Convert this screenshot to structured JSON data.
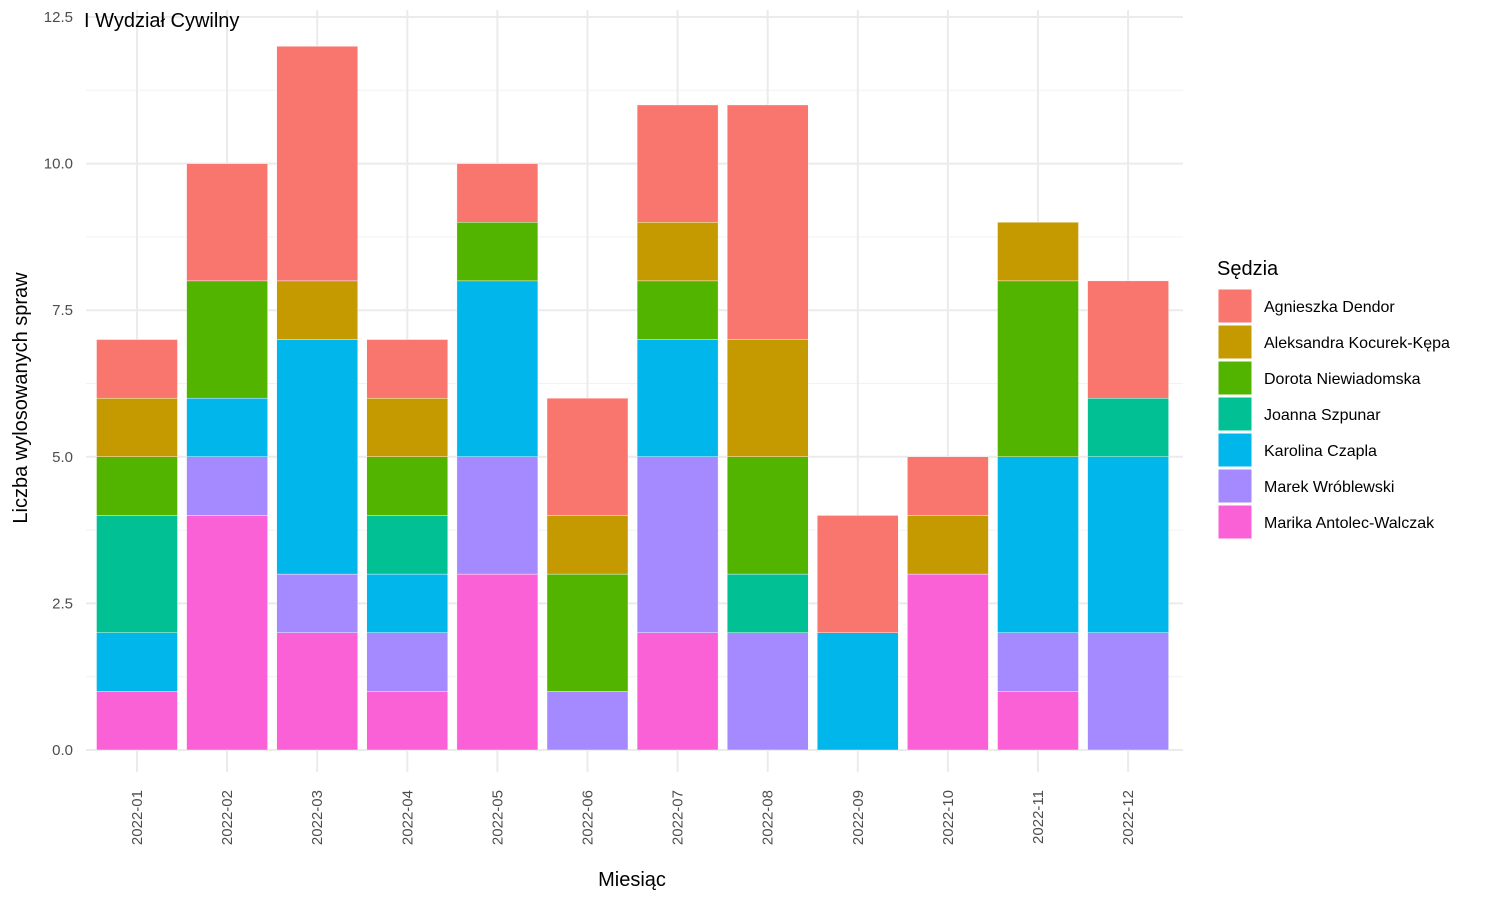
{
  "chart_data": {
    "type": "bar",
    "stacked": true,
    "title": "I Wydział Cywilny",
    "xlabel": "Miesiąc",
    "ylabel": "Liczba wylosowanych spraw",
    "ylim": [
      0,
      12.5
    ],
    "yticks": [
      "0.0",
      "2.5",
      "5.0",
      "7.5",
      "10.0",
      "12.5"
    ],
    "grid": true,
    "legend_title": "Sędzia",
    "legend_position": "right",
    "categories": [
      "2022-01",
      "2022-02",
      "2022-03",
      "2022-04",
      "2022-05",
      "2022-06",
      "2022-07",
      "2022-08",
      "2022-09",
      "2022-10",
      "2022-11",
      "2022-12"
    ],
    "series": [
      {
        "name": "Agnieszka Dendor",
        "color": "#F8766D",
        "values": [
          1,
          2,
          4,
          1,
          1,
          2,
          2,
          4,
          2,
          1,
          0,
          2
        ]
      },
      {
        "name": "Aleksandra Kocurek-Kępa",
        "color": "#C49A00",
        "values": [
          1,
          0,
          1,
          1,
          0,
          1,
          1,
          2,
          0,
          1,
          1,
          0
        ]
      },
      {
        "name": "Dorota Niewiadomska",
        "color": "#53B400",
        "values": [
          1,
          2,
          0,
          1,
          1,
          2,
          1,
          2,
          0,
          0,
          3,
          0
        ]
      },
      {
        "name": "Joanna Szpunar",
        "color": "#00C094",
        "values": [
          2,
          0,
          0,
          1,
          0,
          0,
          0,
          1,
          0,
          0,
          0,
          1
        ]
      },
      {
        "name": "Karolina Czapla",
        "color": "#00B6EB",
        "values": [
          1,
          1,
          4,
          1,
          3,
          0,
          2,
          0,
          2,
          0,
          3,
          3
        ]
      },
      {
        "name": "Marek Wróblewski",
        "color": "#A58AFF",
        "values": [
          0,
          1,
          1,
          1,
          2,
          1,
          3,
          2,
          0,
          0,
          1,
          2
        ]
      },
      {
        "name": "Marika Antolec-Walczak",
        "color": "#FB61D7",
        "values": [
          1,
          4,
          2,
          1,
          3,
          0,
          2,
          0,
          0,
          3,
          1,
          0
        ]
      }
    ]
  }
}
